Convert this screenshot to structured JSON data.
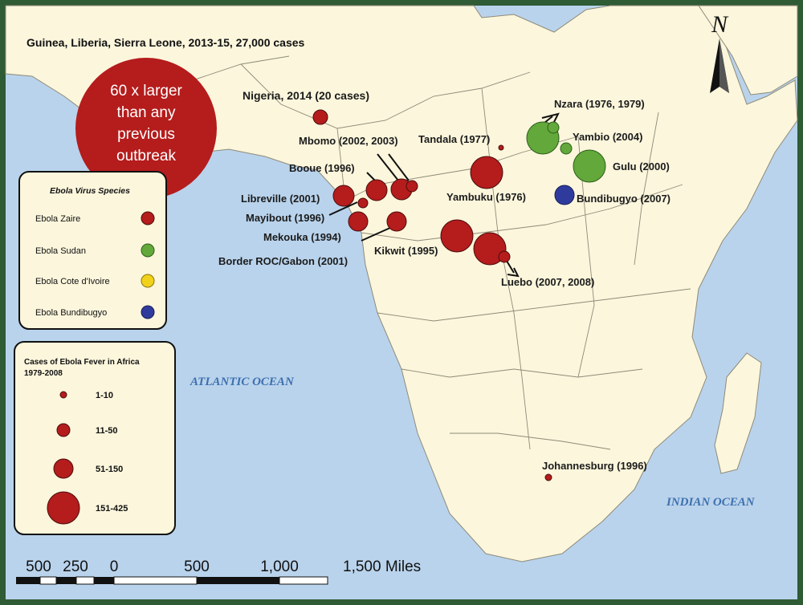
{
  "map": {
    "top_caption": "Guinea, Liberia, Sierra Leone, 2013-15, 27,000 cases",
    "callout": [
      "60 x larger",
      "than any",
      "previous",
      "outbreak"
    ],
    "north_symbol": "N",
    "north_arrow_icon": "north-arrow-icon",
    "oceans": {
      "atlantic": "ATLANTIC OCEAN",
      "indian": "INDIAN OCEAN"
    },
    "colors": {
      "land": "#fbf6dc",
      "water": "#b9d3ec",
      "frame": "#2f5b35",
      "zaire": "#b51c1c",
      "sudan": "#62a83a",
      "cote_divoire": "#f2d11b",
      "bundibugyo": "#2f3b9c",
      "callout": "#b51c1c"
    }
  },
  "outbreaks": [
    {
      "label": "Nigeria, 2014 (20 cases)",
      "species": "zaire"
    },
    {
      "label": "Mbomo (2002, 2003)",
      "species": "zaire"
    },
    {
      "label": "Booue (1996)",
      "species": "zaire"
    },
    {
      "label": "Libreville (2001)",
      "species": "zaire"
    },
    {
      "label": "Mayibout (1996)",
      "species": "zaire"
    },
    {
      "label": "Mekouka (1994)",
      "species": "zaire"
    },
    {
      "label": "Border ROC/Gabon (2001)",
      "species": "zaire"
    },
    {
      "label": "Kikwit (1995)",
      "species": "zaire"
    },
    {
      "label": "Tandala (1977)",
      "species": "zaire"
    },
    {
      "label": "Yambuku (1976)",
      "species": "zaire"
    },
    {
      "label": "Luebo (2007, 2008)",
      "species": "zaire"
    },
    {
      "label": "Nzara (1976, 1979)",
      "species": "sudan"
    },
    {
      "label": "Yambio (2004)",
      "species": "sudan"
    },
    {
      "label": "Gulu (2000)",
      "species": "sudan"
    },
    {
      "label": "Bundibugyo (2007)",
      "species": "bundibugyo"
    },
    {
      "label": "Johannesburg (1996)",
      "species": "zaire"
    }
  ],
  "species_legend": {
    "title": "Ebola Virus Species",
    "items": [
      {
        "label": "Ebola Zaire",
        "color": "#b51c1c"
      },
      {
        "label": "Ebola Sudan",
        "color": "#62a83a"
      },
      {
        "label": "Ebola Cote d'Ivoire",
        "color": "#f2d11b"
      },
      {
        "label": "Ebola Bundibugyo",
        "color": "#2f3b9c"
      }
    ]
  },
  "cases_legend": {
    "title_line1": "Cases of Ebola Fever in Africa",
    "title_line2": "1979-2008",
    "items": [
      {
        "label": "1-10"
      },
      {
        "label": "11-50"
      },
      {
        "label": "51-150"
      },
      {
        "label": "151-425"
      }
    ]
  },
  "scale_bar": {
    "labels": [
      "500",
      "250",
      "0",
      "500",
      "1,000",
      "1,500 Miles"
    ]
  }
}
